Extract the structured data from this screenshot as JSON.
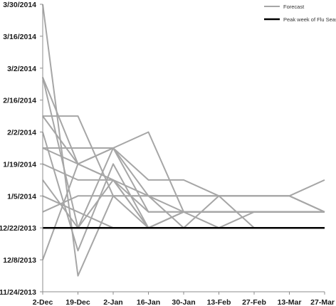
{
  "chart_data": {
    "type": "line",
    "x": [
      "2-Dec",
      "19-Dec",
      "2-Jan",
      "16-Jan",
      "30-Jan",
      "13-Feb",
      "27-Feb",
      "13-Mar",
      "27-Mar"
    ],
    "y_ticks": [
      "11/24/2013",
      "12/8/2013",
      "12/22/2013",
      "1/5/2014",
      "1/19/2014",
      "2/2/2014",
      "2/16/2014",
      "3/2/2014",
      "3/16/2014",
      "3/30/2014"
    ],
    "ylim": [
      "11/24/2013",
      "3/30/2014"
    ],
    "legend": {
      "position": "top-right",
      "entries": [
        {
          "label": "Forecast",
          "color": "#a6a6a6"
        },
        {
          "label": "Peak week of Flu Season",
          "color": "#000000"
        }
      ]
    },
    "peak": {
      "name": "Peak week of Flu Season",
      "color": "#000000",
      "value": "12/22/2013"
    },
    "forecast_color": "#a6a6a6",
    "series": [
      {
        "name": "Forecast",
        "values": [
          "3/30/2014",
          "12/1/2013",
          "1/5/2014",
          "12/22/2013",
          "12/22/2013",
          "12/22/2013",
          "12/22/2013",
          "12/22/2013",
          "12/22/2013"
        ]
      },
      {
        "name": "Forecast",
        "values": [
          "2/26/2014",
          "12/22/2013",
          "1/12/2014",
          "12/22/2013",
          "12/22/2013",
          "12/22/2013",
          "12/22/2013",
          "12/22/2013",
          "12/22/2013"
        ]
      },
      {
        "name": "Forecast",
        "values": [
          "2/26/2014",
          "1/19/2014",
          "1/26/2014",
          "1/5/2014",
          "12/29/2013",
          "12/29/2013",
          "12/29/2013",
          "12/29/2013",
          "12/29/2013"
        ]
      },
      {
        "name": "Forecast",
        "values": [
          "2/9/2014",
          "2/9/2014",
          "1/5/2014",
          "1/5/2014",
          "12/22/2013",
          "1/5/2014",
          "12/22/2013",
          "12/22/2013",
          "12/22/2013"
        ]
      },
      {
        "name": "Forecast",
        "values": [
          "2/9/2014",
          "1/19/2014",
          "1/26/2014",
          "2/2/2014",
          "12/29/2013",
          "12/22/2013",
          "12/29/2013",
          "12/29/2013",
          "12/29/2013"
        ]
      },
      {
        "name": "Forecast",
        "values": [
          "2/2/2014",
          "12/12/2013",
          "1/19/2014",
          "12/22/2013",
          "12/29/2013",
          "12/29/2013",
          "12/29/2013",
          "12/29/2013",
          "12/29/2013"
        ]
      },
      {
        "name": "Forecast",
        "values": [
          "1/26/2014",
          "1/26/2014",
          "1/26/2014",
          "1/12/2014",
          "1/12/2014",
          "1/5/2014",
          "1/5/2014",
          "1/5/2014",
          "1/12/2014"
        ]
      },
      {
        "name": "Forecast",
        "values": [
          "1/26/2014",
          "1/19/2014",
          "1/12/2014",
          "12/29/2013",
          "12/29/2013",
          "12/29/2013",
          "12/29/2013",
          "12/29/2013",
          "12/29/2013"
        ]
      },
      {
        "name": "Forecast",
        "values": [
          "1/19/2014",
          "1/12/2014",
          "1/12/2014",
          "1/5/2014",
          "1/5/2014",
          "1/5/2014",
          "1/5/2014",
          "1/5/2014",
          "12/29/2013"
        ]
      },
      {
        "name": "Forecast",
        "values": [
          "1/12/2014",
          "12/22/2013",
          "1/26/2014",
          "12/29/2013",
          "12/29/2013",
          "12/29/2013",
          "12/29/2013",
          "12/29/2013",
          "12/29/2013"
        ]
      },
      {
        "name": "Forecast",
        "values": [
          "1/5/2014",
          "12/29/2013",
          "12/22/2013",
          "12/22/2013",
          "12/29/2013",
          "12/29/2013",
          "12/29/2013",
          "12/29/2013",
          "12/29/2013"
        ]
      },
      {
        "name": "Forecast",
        "values": [
          "12/29/2013",
          "1/5/2014",
          "1/5/2014",
          "1/5/2014",
          "1/5/2014",
          "1/5/2014",
          "1/5/2014",
          "1/5/2014",
          "12/29/2013"
        ]
      },
      {
        "name": "Forecast",
        "values": [
          "12/8/2013",
          "1/19/2014",
          "1/12/2014",
          "12/22/2013",
          "12/22/2013",
          "12/22/2013",
          "12/22/2013",
          "12/22/2013",
          "12/22/2013"
        ]
      }
    ]
  }
}
